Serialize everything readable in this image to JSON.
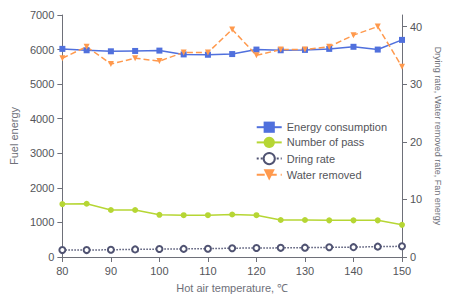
{
  "chart_data": {
    "type": "line",
    "xlabel": "Hot air temperature, ℃",
    "ylabel": "Fuel energy",
    "y2label": "Drying rate, Water removed rate, Fan energy",
    "x": [
      80,
      85,
      90,
      95,
      100,
      105,
      110,
      115,
      120,
      125,
      130,
      135,
      140,
      145,
      150
    ],
    "xlim": [
      80,
      150
    ],
    "xticks": [
      80,
      90,
      100,
      110,
      120,
      130,
      140,
      150
    ],
    "ylim": [
      0,
      7000
    ],
    "yticks": [
      0,
      1000,
      2000,
      3000,
      4000,
      5000,
      6000,
      7000
    ],
    "y2lim": [
      0,
      42
    ],
    "y2ticks": [
      0,
      10,
      20,
      30,
      40
    ],
    "grid": false,
    "legend": "right",
    "series": [
      {
        "name": "Energy consumption",
        "marker": "square",
        "line_style": "solid",
        "values": [
          6020,
          5980,
          5950,
          5960,
          5970,
          5860,
          5850,
          5870,
          6000,
          5980,
          5990,
          6020,
          6080,
          6000,
          6280
        ]
      },
      {
        "name": "Number of pass",
        "marker": "circle",
        "line_style": "solid",
        "values": [
          1530,
          1540,
          1360,
          1360,
          1220,
          1210,
          1210,
          1230,
          1210,
          1070,
          1070,
          1060,
          1060,
          1060,
          930
        ]
      },
      {
        "name": "Dring rate",
        "marker": "open circle",
        "line_style": "dotted",
        "values": [
          200,
          200,
          210,
          220,
          230,
          235,
          240,
          255,
          260,
          265,
          270,
          280,
          285,
          300,
          310
        ]
      },
      {
        "name": "Water removed",
        "marker": "triangle down",
        "line_style": "dashed",
        "axis": "y2",
        "values": [
          34.5,
          36.5,
          33.5,
          34.5,
          34.0,
          35.5,
          35.5,
          39.5,
          35.0,
          36.0,
          36.0,
          36.5,
          38.5,
          40.0,
          33.0
        ]
      }
    ]
  }
}
